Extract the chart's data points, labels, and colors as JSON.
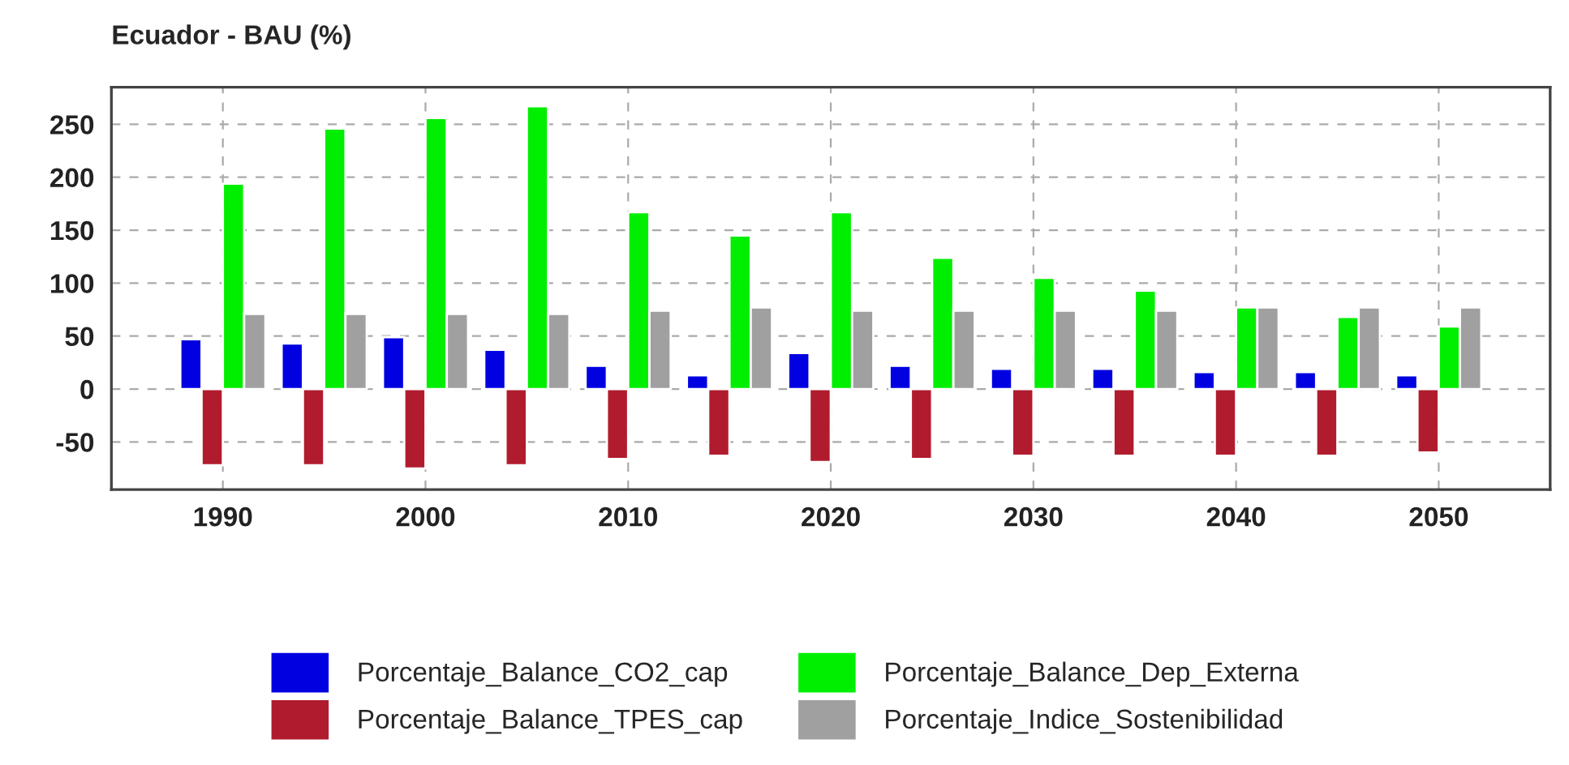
{
  "chart_data": {
    "type": "bar",
    "title": "Ecuador - BAU (%)",
    "x": [
      1990,
      1995,
      2000,
      2005,
      2010,
      2015,
      2020,
      2025,
      2030,
      2035,
      2040,
      2045,
      2050
    ],
    "series": [
      {
        "name": "Porcentaje_Balance_CO2_cap",
        "color": "#0000e0",
        "values": [
          47,
          43,
          49,
          37,
          22,
          13,
          34,
          22,
          19,
          19,
          16,
          16,
          13
        ]
      },
      {
        "name": "Porcentaje_Balance_TPES_cap",
        "color": "#b01c2e",
        "values": [
          -72,
          -72,
          -75,
          -72,
          -66,
          -63,
          -69,
          -66,
          -63,
          -63,
          -63,
          -63,
          -60
        ]
      },
      {
        "name": "Porcentaje_Balance_Dep_Externa",
        "color": "#00ee00",
        "values": [
          194,
          246,
          256,
          267,
          167,
          145,
          167,
          124,
          105,
          93,
          77,
          68,
          59
        ]
      },
      {
        "name": "Porcentaje_Indice_Sostenibilidad",
        "color": "#a0a0a0",
        "values": [
          71,
          71,
          71,
          71,
          74,
          77,
          74,
          74,
          74,
          74,
          77,
          77,
          77
        ]
      }
    ],
    "xlim": [
      1984.5,
      2055.5
    ],
    "xticks": [
      1990,
      2000,
      2010,
      2020,
      2030,
      2040,
      2050
    ],
    "ylim": [
      -95,
      285
    ],
    "yticks": [
      -50,
      0,
      50,
      100,
      150,
      200,
      250
    ],
    "grid": true,
    "legend": "bottom"
  }
}
